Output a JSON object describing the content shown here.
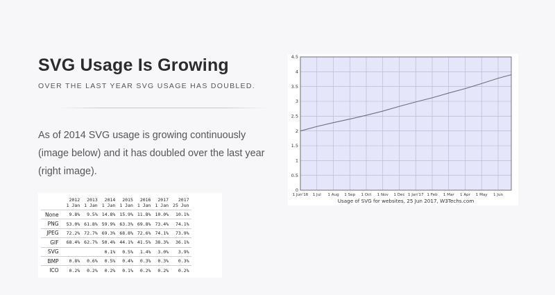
{
  "heading": {
    "title": "SVG Usage Is Growing",
    "subtitle": "OVER THE LAST YEAR SVG USAGE HAS DOUBLED."
  },
  "body_text": "As of 2014 SVG usage is growing continuously (image below) and it has doubled over the last year (right image).",
  "table": {
    "columns": [
      {
        "year": "2012",
        "date": "1 Jan"
      },
      {
        "year": "2013",
        "date": "1 Jan"
      },
      {
        "year": "2014",
        "date": "1 Jan"
      },
      {
        "year": "2015",
        "date": "1 Jan"
      },
      {
        "year": "2016",
        "date": "1 Jan"
      },
      {
        "year": "2017",
        "date": "1 Jan"
      },
      {
        "year": "2017",
        "date": "25 Jun"
      }
    ],
    "rows": [
      {
        "label": "None",
        "values": [
          "9.8%",
          "9.5%",
          "14.8%",
          "15.9%",
          "11.8%",
          "10.0%",
          "10.1%"
        ]
      },
      {
        "label": "PNG",
        "values": [
          "53.0%",
          "61.8%",
          "59.9%",
          "63.3%",
          "69.8%",
          "73.4%",
          "74.1%"
        ]
      },
      {
        "label": "JPEG",
        "values": [
          "72.2%",
          "72.7%",
          "69.3%",
          "68.8%",
          "72.6%",
          "74.1%",
          "73.9%"
        ]
      },
      {
        "label": "GIF",
        "values": [
          "68.4%",
          "62.7%",
          "50.4%",
          "44.1%",
          "41.5%",
          "38.3%",
          "36.1%"
        ]
      },
      {
        "label": "SVG",
        "values": [
          "",
          "",
          "0.1%",
          "0.5%",
          "1.4%",
          "3.0%",
          "3.9%"
        ]
      },
      {
        "label": "BMP",
        "values": [
          "0.8%",
          "0.6%",
          "0.5%",
          "0.4%",
          "0.3%",
          "0.3%",
          "0.3%"
        ]
      },
      {
        "label": "ICO",
        "values": [
          "0.2%",
          "0.2%",
          "0.2%",
          "0.1%",
          "0.2%",
          "0.2%",
          "0.2%"
        ]
      }
    ]
  },
  "chart_data": {
    "type": "line",
    "title": "",
    "caption": "Usage of SVG for websites, 25 Jun 2017, W3Techs.com",
    "xlabel": "",
    "ylabel": "",
    "categories": [
      "1 Jun'16",
      "1 Jul",
      "1 Aug",
      "1 Sep",
      "1 Oct",
      "1 Nov",
      "1 Dec",
      "1 Jan'17",
      "1 Feb",
      "1 Mar",
      "1 Apr",
      "1 May",
      "1 Jun"
    ],
    "yticks": [
      "0",
      "0.5",
      "1",
      "1.5",
      "2",
      "2.5",
      "3",
      "3.5",
      "4",
      "4.5"
    ],
    "ylim": [
      0,
      4.5
    ],
    "grid": true,
    "colors": {
      "plot_background": "#e6e6fa",
      "line": "#6e6e7a",
      "grid": "#b4b4cc"
    },
    "series": [
      {
        "x": [
          0,
          1,
          2,
          3,
          4,
          5,
          6,
          7,
          8,
          9,
          10,
          11,
          12,
          12.8
        ],
        "values": [
          2.0,
          2.15,
          2.28,
          2.4,
          2.53,
          2.67,
          2.83,
          2.98,
          3.12,
          3.28,
          3.43,
          3.6,
          3.78,
          3.9
        ]
      }
    ]
  }
}
